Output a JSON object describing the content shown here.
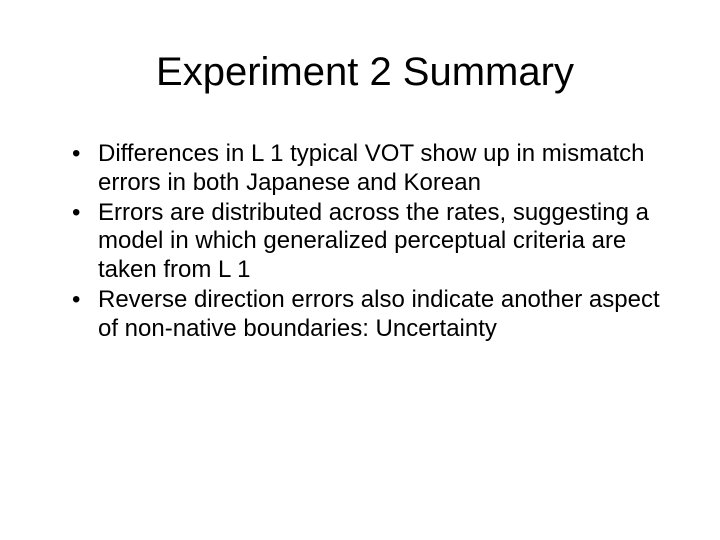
{
  "slide": {
    "title": "Experiment 2 Summary",
    "title_fontsize": 40,
    "body_fontsize": 24,
    "background_color": "#ffffff",
    "text_color": "#000000",
    "font_family": "Arial",
    "bullets": [
      "Differences in L 1 typical VOT show up in mismatch errors in both Japanese and Korean",
      "Errors are distributed across the rates, suggesting a model in which generalized perceptual criteria are taken from L 1",
      "Reverse direction errors also indicate another aspect of non-native boundaries: Uncertainty"
    ]
  }
}
